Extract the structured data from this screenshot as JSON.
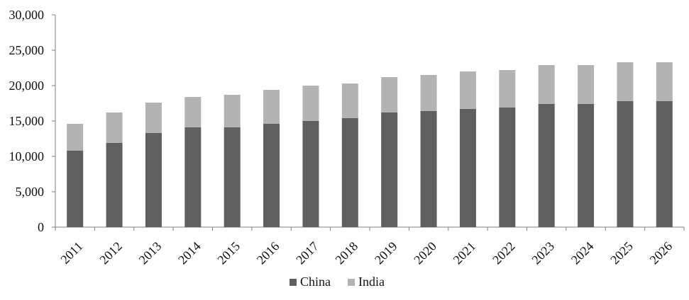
{
  "chart_data": {
    "type": "bar",
    "stacked": true,
    "title": "",
    "xlabel": "",
    "ylabel": "",
    "categories": [
      "2011",
      "2012",
      "2013",
      "2014",
      "2015",
      "2016",
      "2017",
      "2018",
      "2019",
      "2020",
      "2021",
      "2022",
      "2023",
      "2024",
      "2025",
      "2026"
    ],
    "series": [
      {
        "name": "China",
        "color": "#5f5f5f",
        "values": [
          10800,
          11900,
          13300,
          14100,
          14100,
          14600,
          15000,
          15400,
          16200,
          16400,
          16700,
          16900,
          17400,
          17400,
          17800,
          17800
        ]
      },
      {
        "name": "India",
        "color": "#b3b3b3",
        "values": [
          3800,
          4300,
          4300,
          4300,
          4600,
          4800,
          5000,
          4900,
          5000,
          5100,
          5300,
          5300,
          5500,
          5500,
          5500,
          5500
        ]
      }
    ],
    "ylim": [
      0,
      30000
    ],
    "yticks": [
      0,
      5000,
      10000,
      15000,
      20000,
      25000,
      30000
    ],
    "ytick_labels": [
      "0",
      "5,000",
      "10,000",
      "15,000",
      "20,000",
      "25,000",
      "30,000"
    ],
    "grid": false,
    "legend_position": "bottom-center",
    "axis_color": "#7f7f7f"
  }
}
